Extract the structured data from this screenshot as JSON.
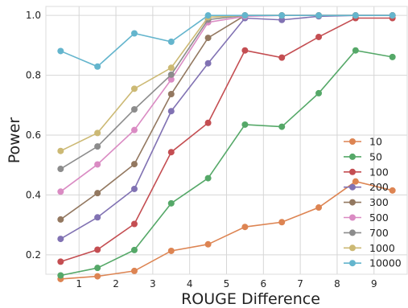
{
  "chart_data": {
    "type": "line",
    "xlabel": "ROUGE Difference",
    "ylabel": "Power",
    "xlim": [
      0.1,
      9.9
    ],
    "ylim": [
      0.135,
      1.03
    ],
    "xticks": [
      "1",
      "2",
      "3",
      "4",
      "5",
      "6",
      "7",
      "8",
      "9"
    ],
    "yticks": [
      "0.2",
      "0.4",
      "0.6",
      "0.8",
      "1.0"
    ],
    "grid": true,
    "legend_position": "lower-right",
    "x": [
      0.5,
      1.5,
      2.5,
      3.5,
      4.5,
      5.5,
      6.5,
      7.5,
      8.5,
      9.5
    ],
    "series": [
      {
        "name": "10",
        "color": "#dd8452",
        "values": [
          0.119,
          0.128,
          0.146,
          0.213,
          0.235,
          0.293,
          0.309,
          0.358,
          0.445,
          0.415
        ]
      },
      {
        "name": "50",
        "color": "#55a868",
        "values": [
          0.131,
          0.156,
          0.216,
          0.372,
          0.456,
          0.635,
          0.628,
          0.74,
          0.883,
          0.861
        ]
      },
      {
        "name": "100",
        "color": "#c44e52",
        "values": [
          0.177,
          0.217,
          0.303,
          0.543,
          0.641,
          0.883,
          0.859,
          0.928,
          0.991,
          0.991
        ]
      },
      {
        "name": "200",
        "color": "#8172b3",
        "values": [
          0.253,
          0.325,
          0.42,
          0.68,
          0.84,
          0.991,
          0.985,
          0.997,
          1.0,
          1.0
        ]
      },
      {
        "name": "300",
        "color": "#937860",
        "values": [
          0.318,
          0.406,
          0.503,
          0.737,
          0.925,
          1.0,
          1.0,
          1.0,
          1.0,
          1.0
        ]
      },
      {
        "name": "500",
        "color": "#da8bc3",
        "values": [
          0.411,
          0.502,
          0.617,
          0.786,
          0.977,
          0.997,
          1.0,
          1.0,
          1.0,
          1.0
        ]
      },
      {
        "name": "700",
        "color": "#8c8c8c",
        "values": [
          0.487,
          0.562,
          0.686,
          0.802,
          0.986,
          1.0,
          1.0,
          1.0,
          1.0,
          1.0
        ]
      },
      {
        "name": "1000",
        "color": "#ccb974",
        "values": [
          0.547,
          0.607,
          0.755,
          0.825,
          0.994,
          1.0,
          1.0,
          1.0,
          1.0,
          1.0
        ]
      },
      {
        "name": "10000",
        "color": "#64b5cd",
        "values": [
          0.881,
          0.829,
          0.94,
          0.912,
          1.0,
          1.0,
          1.0,
          1.0,
          1.0,
          1.0
        ]
      }
    ]
  }
}
